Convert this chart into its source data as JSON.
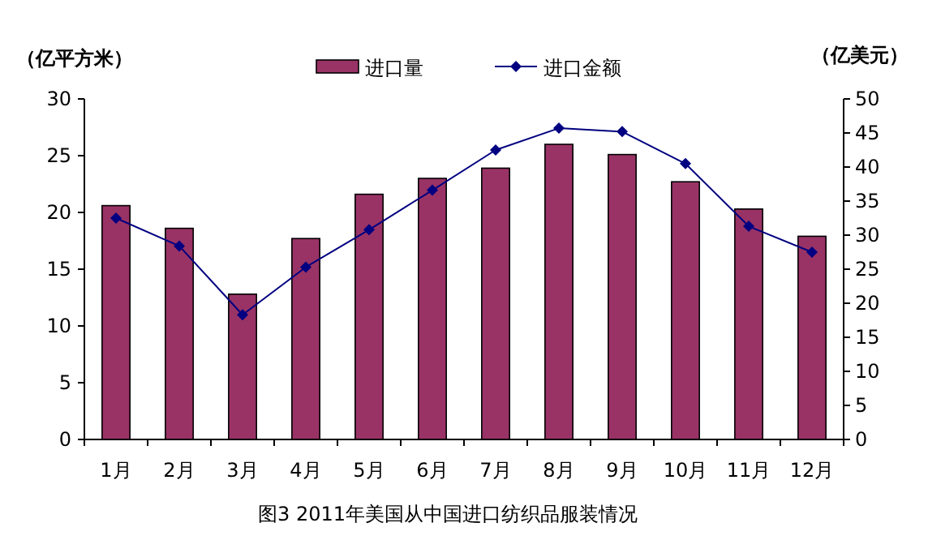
{
  "chart_data": {
    "type": "bar",
    "title": "图3  2011年美国从中国进口纺织品服装情况",
    "ylabel": "（亿平方米）",
    "y2label": "（亿美元）",
    "categories": [
      "1月",
      "2月",
      "3月",
      "4月",
      "5月",
      "6月",
      "7月",
      "8月",
      "9月",
      "10月",
      "11月",
      "12月"
    ],
    "series": [
      {
        "name": "进口量",
        "color": "#993366",
        "values": [
          20.6,
          18.6,
          12.8,
          17.7,
          21.6,
          23.0,
          23.9,
          26.0,
          25.1,
          22.7,
          20.3,
          17.9
        ]
      },
      {
        "name": "进口金额",
        "type": "line",
        "axis": "y2",
        "color": "#000080",
        "marker": "diamond",
        "values": [
          32.5,
          28.4,
          18.3,
          25.3,
          30.8,
          36.6,
          42.5,
          45.7,
          45.2,
          40.5,
          31.3,
          27.5
        ]
      }
    ],
    "ylim": [
      0,
      30
    ],
    "yticks": [
      0,
      5,
      10,
      15,
      20,
      25,
      30
    ],
    "y2lim": [
      0,
      50
    ],
    "y2ticks": [
      0,
      5,
      10,
      15,
      20,
      25,
      30,
      35,
      40,
      45,
      50
    ],
    "legend": "top",
    "grid": false
  }
}
